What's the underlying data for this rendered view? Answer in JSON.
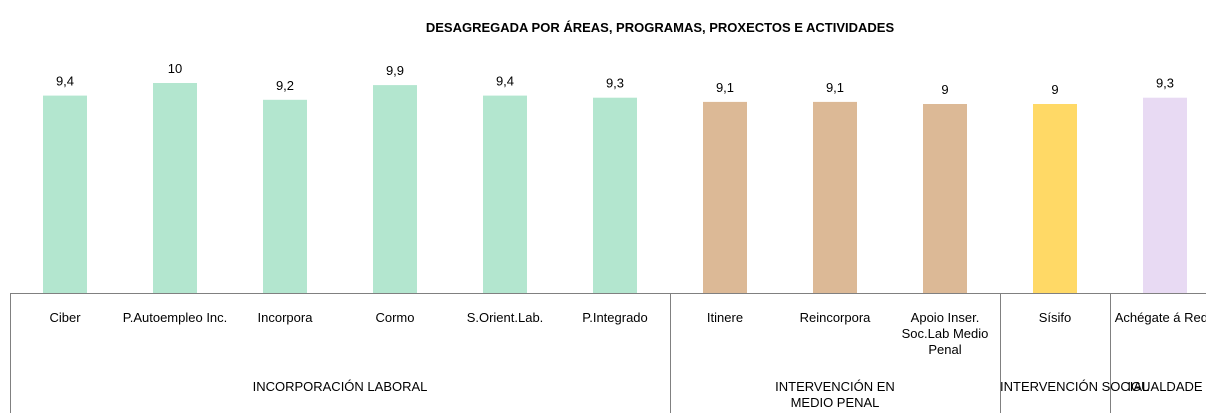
{
  "chart_data": {
    "type": "bar",
    "title": "DESAGREGADA POR ÁREAS, PROGRAMAS, PROXECTOS E ACTIVIDADES",
    "ylim": [
      0,
      12
    ],
    "series": [
      {
        "name": "INCORPORACIÓN LABORAL",
        "color": "#b3e6cf",
        "categories": [
          "Ciber",
          "P.Autoempleo Inc.",
          "Incorpora",
          "Cormo",
          "S.Orient.Lab.",
          "P.Integrado"
        ],
        "values": [
          9.4,
          10,
          9.2,
          9.9,
          9.4,
          9.3
        ],
        "value_labels": [
          "9,4",
          "10",
          "9,2",
          "9,9",
          "9,4",
          "9,3"
        ]
      },
      {
        "name": "INTERVENCIÓN EN MEDIO PENAL",
        "color": "#dcb996",
        "categories": [
          "Itinere",
          "Reincorpora",
          "Apoio Inser. Soc.Lab Medio Penal"
        ],
        "values": [
          9.1,
          9.1,
          9
        ],
        "value_labels": [
          "9,1",
          "9,1",
          "9"
        ]
      },
      {
        "name": "INTERVENCIÓN SOCIAL",
        "color": "#ffd966",
        "categories": [
          "Sísifo"
        ],
        "values": [
          9
        ],
        "value_labels": [
          "9"
        ]
      },
      {
        "name": "IGUALDADE",
        "color": "#e8daf3",
        "categories": [
          "Achégate á Rede"
        ],
        "values": [
          9.3
        ],
        "value_labels": [
          "9,3"
        ]
      }
    ]
  }
}
